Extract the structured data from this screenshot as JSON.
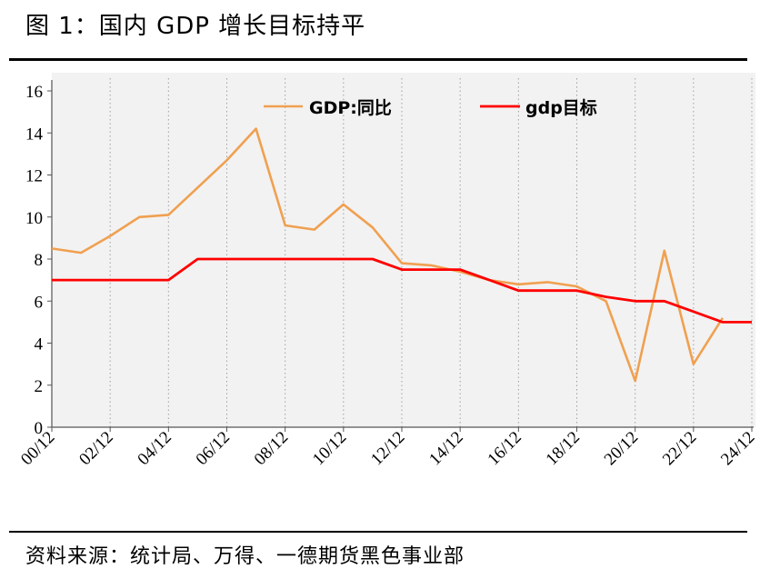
{
  "header": {
    "title": "图 1：国内 GDP 增长目标持平"
  },
  "footer": {
    "source": "资料来源：统计局、万得、一德期货黑色事业部"
  },
  "colors": {
    "gdp": "#F0A050",
    "target": "#FF0000",
    "plot_bg": "#F2F2F2",
    "grid": "#A0A0A0"
  },
  "chart_data": {
    "type": "line",
    "x_tick_labels": [
      "00/12",
      "02/12",
      "04/12",
      "06/12",
      "08/12",
      "10/12",
      "12/12",
      "14/12",
      "16/12",
      "18/12",
      "20/12",
      "22/12",
      "24/12"
    ],
    "y_tick_labels": [
      "0",
      "2",
      "4",
      "6",
      "8",
      "10",
      "12",
      "14",
      "16"
    ],
    "ylim": [
      0,
      16
    ],
    "x": [
      "00/12",
      "01/12",
      "02/12",
      "03/12",
      "04/12",
      "05/12",
      "06/12",
      "07/12",
      "08/12",
      "09/12",
      "10/12",
      "11/12",
      "12/12",
      "13/12",
      "14/12",
      "15/12",
      "16/12",
      "17/12",
      "18/12",
      "19/12",
      "20/12",
      "21/12",
      "22/12",
      "23/12",
      "24/12"
    ],
    "series": [
      {
        "name": "GDP:同比",
        "values": [
          8.5,
          8.3,
          9.1,
          10.0,
          10.1,
          11.4,
          12.7,
          14.2,
          9.6,
          9.4,
          10.6,
          9.5,
          7.8,
          7.7,
          7.4,
          7.0,
          6.8,
          6.9,
          6.7,
          6.0,
          2.2,
          8.4,
          3.0,
          5.2,
          null
        ]
      },
      {
        "name": "gdp目标",
        "values": [
          7.0,
          7.0,
          7.0,
          7.0,
          7.0,
          8.0,
          8.0,
          8.0,
          8.0,
          8.0,
          8.0,
          8.0,
          7.5,
          7.5,
          7.5,
          7.0,
          6.5,
          6.5,
          6.5,
          6.2,
          6.0,
          6.0,
          5.5,
          5.0,
          5.0
        ]
      }
    ],
    "legend_position": "top",
    "grid": "vertical dotted"
  }
}
